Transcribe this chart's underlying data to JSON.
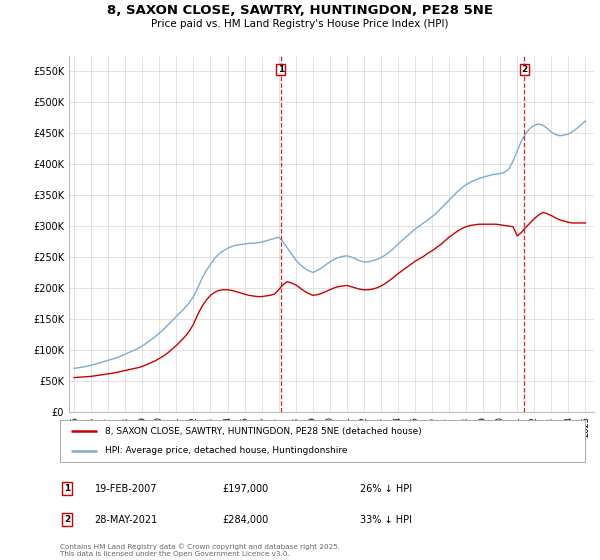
{
  "title": "8, SAXON CLOSE, SAWTRY, HUNTINGDON, PE28 5NE",
  "subtitle": "Price paid vs. HM Land Registry's House Price Index (HPI)",
  "ylim": [
    0,
    575000
  ],
  "yticks": [
    0,
    50000,
    100000,
    150000,
    200000,
    250000,
    300000,
    350000,
    400000,
    450000,
    500000,
    550000
  ],
  "ytick_labels": [
    "£0",
    "£50K",
    "£100K",
    "£150K",
    "£200K",
    "£250K",
    "£300K",
    "£350K",
    "£400K",
    "£450K",
    "£500K",
    "£550K"
  ],
  "background_color": "#ffffff",
  "grid_color": "#dddddd",
  "sale1_date": "19-FEB-2007",
  "sale1_price": 197000,
  "sale1_hpi_diff": "26% ↓ HPI",
  "sale2_date": "28-MAY-2021",
  "sale2_price": 284000,
  "sale2_hpi_diff": "33% ↓ HPI",
  "line_red_color": "#cc0000",
  "line_blue_color": "#7aadd4",
  "vline_color": "#cc0000",
  "marker_border_color": "#cc0000",
  "legend_label_red": "8, SAXON CLOSE, SAWTRY, HUNTINGDON, PE28 5NE (detached house)",
  "legend_label_blue": "HPI: Average price, detached house, Huntingdonshire",
  "footer": "Contains HM Land Registry data © Crown copyright and database right 2025.\nThis data is licensed under the Open Government Licence v3.0.",
  "hpi_years": [
    1995,
    1995.25,
    1995.5,
    1995.75,
    1996,
    1996.25,
    1996.5,
    1996.75,
    1997,
    1997.25,
    1997.5,
    1997.75,
    1998,
    1998.25,
    1998.5,
    1998.75,
    1999,
    1999.25,
    1999.5,
    1999.75,
    2000,
    2000.25,
    2000.5,
    2000.75,
    2001,
    2001.25,
    2001.5,
    2001.75,
    2002,
    2002.25,
    2002.5,
    2002.75,
    2003,
    2003.25,
    2003.5,
    2003.75,
    2004,
    2004.25,
    2004.5,
    2004.75,
    2005,
    2005.25,
    2005.5,
    2005.75,
    2006,
    2006.25,
    2006.5,
    2006.75,
    2007,
    2007.25,
    2007.5,
    2007.75,
    2008,
    2008.25,
    2008.5,
    2008.75,
    2009,
    2009.25,
    2009.5,
    2009.75,
    2010,
    2010.25,
    2010.5,
    2010.75,
    2011,
    2011.25,
    2011.5,
    2011.75,
    2012,
    2012.25,
    2012.5,
    2012.75,
    2013,
    2013.25,
    2013.5,
    2013.75,
    2014,
    2014.25,
    2014.5,
    2014.75,
    2015,
    2015.25,
    2015.5,
    2015.75,
    2016,
    2016.25,
    2016.5,
    2016.75,
    2017,
    2017.25,
    2017.5,
    2017.75,
    2018,
    2018.25,
    2018.5,
    2018.75,
    2019,
    2019.25,
    2019.5,
    2019.75,
    2020,
    2020.25,
    2020.5,
    2020.75,
    2021,
    2021.25,
    2021.5,
    2021.75,
    2022,
    2022.25,
    2022.5,
    2022.75,
    2023,
    2023.25,
    2023.5,
    2023.75,
    2024,
    2024.25,
    2024.5,
    2024.75,
    2025
  ],
  "hpi_values": [
    70000,
    71000,
    72000,
    73500,
    75000,
    77000,
    79000,
    81000,
    83000,
    85000,
    87000,
    90000,
    93000,
    96000,
    99000,
    102000,
    106000,
    111000,
    116000,
    121000,
    127000,
    133000,
    140000,
    147000,
    154000,
    161000,
    168000,
    176000,
    186000,
    200000,
    215000,
    228000,
    238000,
    248000,
    255000,
    260000,
    264000,
    267000,
    269000,
    270000,
    271000,
    272000,
    272000,
    273000,
    274000,
    276000,
    278000,
    280000,
    282000,
    275000,
    265000,
    255000,
    245000,
    238000,
    232000,
    228000,
    225000,
    228000,
    232000,
    237000,
    242000,
    246000,
    249000,
    251000,
    252000,
    250000,
    247000,
    244000,
    242000,
    242000,
    244000,
    246000,
    249000,
    253000,
    258000,
    264000,
    271000,
    277000,
    283000,
    289000,
    295000,
    300000,
    305000,
    310000,
    315000,
    321000,
    328000,
    335000,
    342000,
    349000,
    356000,
    362000,
    367000,
    371000,
    374000,
    377000,
    379000,
    381000,
    383000,
    384000,
    385000,
    387000,
    392000,
    405000,
    422000,
    438000,
    450000,
    458000,
    463000,
    465000,
    463000,
    458000,
    452000,
    448000,
    446000,
    447000,
    449000,
    453000,
    458000,
    464000,
    470000
  ],
  "red_years": [
    1995,
    1995.25,
    1995.5,
    1995.75,
    1996,
    1996.25,
    1996.5,
    1996.75,
    1997,
    1997.25,
    1997.5,
    1997.75,
    1998,
    1998.25,
    1998.5,
    1998.75,
    1999,
    1999.25,
    1999.5,
    1999.75,
    2000,
    2000.25,
    2000.5,
    2000.75,
    2001,
    2001.25,
    2001.5,
    2001.75,
    2002,
    2002.25,
    2002.5,
    2002.75,
    2003,
    2003.25,
    2003.5,
    2003.75,
    2004,
    2004.25,
    2004.5,
    2004.75,
    2005,
    2005.25,
    2005.5,
    2005.75,
    2006,
    2006.25,
    2006.5,
    2006.75,
    2007,
    2007.25,
    2007.5,
    2007.75,
    2008,
    2008.25,
    2008.5,
    2008.75,
    2009,
    2009.25,
    2009.5,
    2009.75,
    2010,
    2010.25,
    2010.5,
    2010.75,
    2011,
    2011.25,
    2011.5,
    2011.75,
    2012,
    2012.25,
    2012.5,
    2012.75,
    2013,
    2013.25,
    2013.5,
    2013.75,
    2014,
    2014.25,
    2014.5,
    2014.75,
    2015,
    2015.25,
    2015.5,
    2015.75,
    2016,
    2016.25,
    2016.5,
    2016.75,
    2017,
    2017.25,
    2017.5,
    2017.75,
    2018,
    2018.25,
    2018.5,
    2018.75,
    2019,
    2019.25,
    2019.5,
    2019.75,
    2020,
    2020.25,
    2020.5,
    2020.75,
    2021,
    2021.25,
    2021.5,
    2021.75,
    2022,
    2022.25,
    2022.5,
    2022.75,
    2023,
    2023.25,
    2023.5,
    2023.75,
    2024,
    2024.25,
    2024.5,
    2024.75,
    2025
  ],
  "red_values": [
    55000,
    55500,
    56000,
    56500,
    57000,
    58000,
    59000,
    60000,
    61000,
    62000,
    63500,
    65000,
    66500,
    68000,
    69500,
    71000,
    73000,
    76000,
    79000,
    82000,
    86000,
    90000,
    95000,
    101000,
    107000,
    114000,
    121000,
    130000,
    141000,
    157000,
    170000,
    180000,
    188000,
    193000,
    196000,
    197000,
    197000,
    196000,
    194000,
    192000,
    190000,
    188000,
    187000,
    186000,
    186000,
    187000,
    188000,
    190000,
    197000,
    205000,
    210000,
    208000,
    205000,
    200000,
    195000,
    191000,
    188000,
    189000,
    191000,
    194000,
    197000,
    200000,
    202000,
    203000,
    204000,
    202000,
    200000,
    198000,
    197000,
    197000,
    198000,
    200000,
    203000,
    207000,
    212000,
    217000,
    223000,
    228000,
    233000,
    238000,
    243000,
    247000,
    251000,
    256000,
    260000,
    265000,
    270000,
    276000,
    282000,
    287000,
    292000,
    296000,
    299000,
    301000,
    302000,
    303000,
    303000,
    303000,
    303000,
    303000,
    302000,
    301000,
    300000,
    299000,
    284000,
    290000,
    298000,
    305000,
    312000,
    318000,
    322000,
    320000,
    317000,
    313000,
    310000,
    308000,
    306000,
    305000,
    305000,
    305000,
    305000
  ],
  "sale1_x": 2007.12,
  "sale2_x": 2021.42,
  "xlim_left": 1994.7,
  "xlim_right": 2025.5
}
